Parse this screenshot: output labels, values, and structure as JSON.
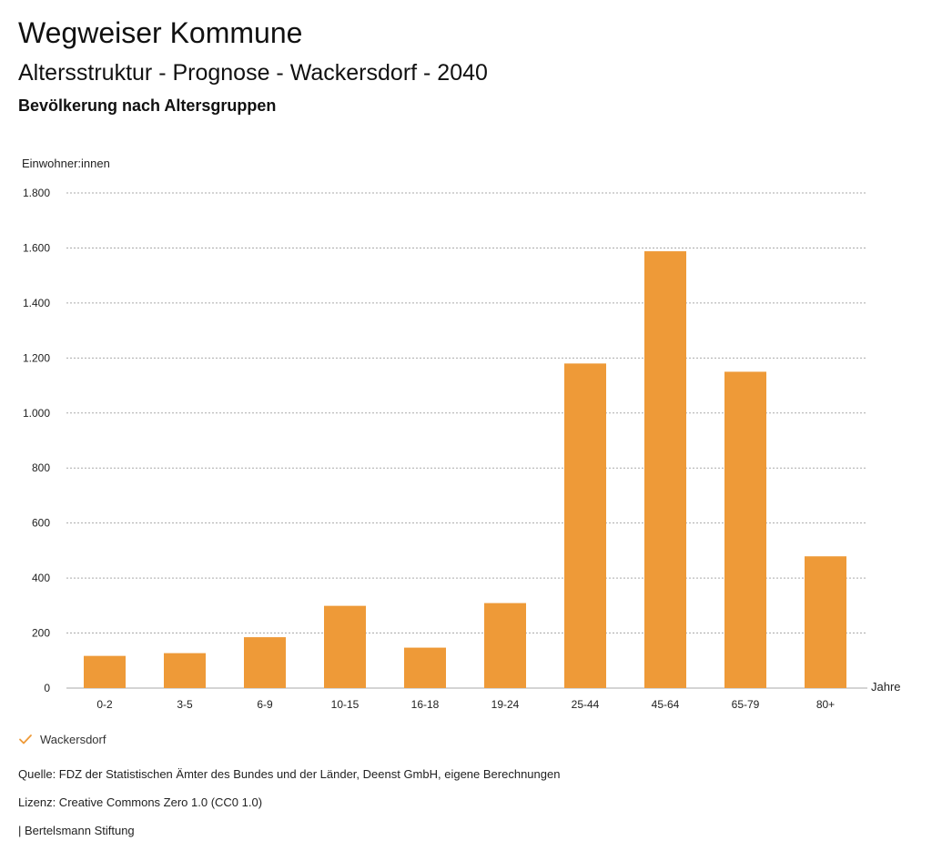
{
  "header": {
    "title": "Wegweiser Kommune",
    "subtitle": "Altersstruktur - Prognose - Wackersdorf - 2040",
    "chart_subtitle": "Bevölkerung nach Altersgruppen"
  },
  "colors": {
    "bar": "#ee9a38",
    "grid": "#aaaaaa",
    "text": "#222222"
  },
  "chart_data": {
    "type": "bar",
    "ylabel": "Einwohner:innen",
    "xlabel": "Jahre",
    "ylim": [
      0,
      1800
    ],
    "yticks": [
      0,
      200,
      400,
      600,
      800,
      1000,
      1200,
      1400,
      1600,
      1800
    ],
    "ytick_labels": [
      "0",
      "200",
      "400",
      "600",
      "800",
      "1.000",
      "1.200",
      "1.400",
      "1.600",
      "1.800"
    ],
    "categories": [
      "0-2",
      "3-5",
      "6-9",
      "10-15",
      "16-18",
      "19-24",
      "25-44",
      "45-64",
      "65-79",
      "80+"
    ],
    "series": [
      {
        "name": "Wackersdorf",
        "values": [
          117,
          127,
          185,
          299,
          147,
          309,
          1180,
          1588,
          1150,
          479
        ]
      }
    ],
    "grid": true,
    "legend_position": "bottom-left"
  },
  "legend": {
    "label": "Wackersdorf",
    "icon": "check-icon"
  },
  "footer": {
    "source": "Quelle: FDZ der Statistischen Ämter des Bundes und der Länder, Deenst GmbH, eigene Berechnungen",
    "license": "Lizenz: Creative Commons Zero 1.0 (CC0 1.0)",
    "publisher": "| Bertelsmann Stiftung"
  }
}
